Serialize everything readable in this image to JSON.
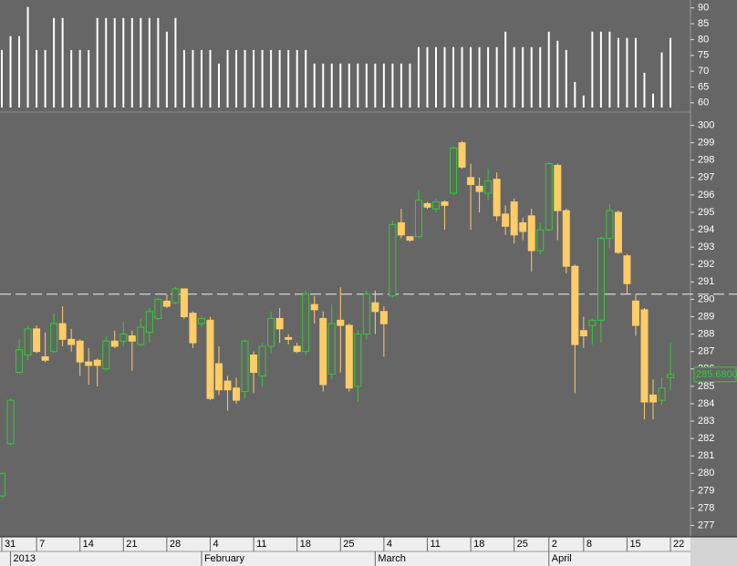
{
  "chart_data": [
    {
      "type": "bar",
      "series": [
        {
          "color": "#ffffff",
          "values": [
            76.7,
            81.1,
            81.1,
            90.3,
            76.7,
            76.7,
            86.8,
            86.8,
            76.7,
            76.7,
            76.7,
            86.8,
            86.8,
            86.8,
            86.8,
            86.8,
            86.8,
            86.8,
            86.8,
            82.5,
            86.8,
            76.7,
            76.7,
            76.7,
            76.7,
            72.4,
            76.7,
            76.7,
            76.7,
            76.7,
            76.7,
            76.7,
            76.7,
            76.7,
            76.7,
            76.7,
            72.4,
            72.4,
            72.4,
            72.4,
            72.4,
            72.4,
            72.4,
            72.4,
            72.4,
            72.4,
            72.4,
            72.4,
            77.6,
            77.6,
            77.6,
            77.6,
            77.6,
            77.6,
            77.6,
            77.6,
            77.6,
            77.6,
            82.5,
            77.6,
            77.6,
            77.6,
            77.6,
            82.5,
            79.6,
            76.7,
            66.6,
            62.3,
            82.5,
            82.5,
            82.5,
            80.5,
            80.5,
            80.5,
            69.5,
            62.9,
            75.9,
            80.5
          ]
        }
      ],
      "ylim": [
        58.5,
        92.5
      ],
      "yticks": [
        60,
        65,
        70,
        75,
        80,
        85,
        90
      ]
    },
    {
      "type": "candlestick",
      "up_color": "#33cc33",
      "down_color": "#ffcc66",
      "categories": [
        "31",
        null,
        null,
        null,
        "7",
        null,
        null,
        null,
        null,
        "14",
        null,
        null,
        null,
        null,
        "21",
        null,
        null,
        null,
        null,
        "28",
        null,
        null,
        null,
        null,
        "4",
        null,
        null,
        null,
        null,
        "11",
        null,
        null,
        null,
        null,
        "18",
        null,
        null,
        null,
        null,
        "25",
        null,
        null,
        null,
        null,
        "4",
        null,
        null,
        null,
        null,
        "11",
        null,
        null,
        null,
        null,
        "18",
        null,
        null,
        null,
        null,
        "25",
        null,
        null,
        null,
        "2",
        null,
        null,
        null,
        "8",
        null,
        null,
        null,
        null,
        "15",
        null,
        null,
        null,
        null,
        "22"
      ],
      "periods": [
        null,
        "2013",
        null,
        null,
        null,
        null,
        null,
        null,
        null,
        null,
        null,
        null,
        null,
        null,
        null,
        null,
        null,
        null,
        null,
        null,
        null,
        null,
        null,
        "February",
        null,
        null,
        null,
        null,
        null,
        null,
        null,
        null,
        null,
        null,
        null,
        null,
        null,
        null,
        null,
        null,
        null,
        null,
        null,
        "March",
        null,
        null,
        null,
        null,
        null,
        null,
        null,
        null,
        null,
        null,
        null,
        null,
        null,
        null,
        null,
        null,
        null,
        null,
        null,
        "April",
        null,
        null,
        null,
        null,
        null,
        null,
        null,
        null,
        null,
        null,
        null,
        null,
        null,
        null
      ],
      "open": [
        278.7,
        281.7,
        285.8,
        286.8,
        288.3,
        286.7,
        287.0,
        288.6,
        287.7,
        287.6,
        286.4,
        286.5,
        286.0,
        287.6,
        287.6,
        287.9,
        287.4,
        288.1,
        288.9,
        289.9,
        289.8,
        290.6,
        289.2,
        288.6,
        288.8,
        286.3,
        285.3,
        284.9,
        284.7,
        286.8,
        285.6,
        287.3,
        288.9,
        287.8,
        287.3,
        287.0,
        289.7,
        288.9,
        285.7,
        288.8,
        288.5,
        285.0,
        288.0,
        289.8,
        289.3,
        290.2,
        294.4,
        293.6,
        293.6,
        295.5,
        295.2,
        295.6,
        296.1,
        299.0,
        297.0,
        296.5,
        296.1,
        296.9,
        294.9,
        295.6,
        294.4,
        294.8,
        292.8,
        294.0,
        297.7,
        295.1,
        291.9,
        288.2,
        288.5,
        288.8,
        293.5,
        295.0,
        292.5,
        289.9,
        289.4,
        284.5,
        284.2,
        285.5
      ],
      "high": [
        280.0,
        284.3,
        287.7,
        288.5,
        288.5,
        288.1,
        289.2,
        289.6,
        288.3,
        287.7,
        287.2,
        286.6,
        287.9,
        288.2,
        288.7,
        288.2,
        288.9,
        289.5,
        290.1,
        290.3,
        290.7,
        290.6,
        289.3,
        289.0,
        289.0,
        287.3,
        285.6,
        285.5,
        287.7,
        287.0,
        287.5,
        289.3,
        289.5,
        288.0,
        287.5,
        290.5,
        290.2,
        289.3,
        289.7,
        290.7,
        288.6,
        288.2,
        290.5,
        290.5,
        289.6,
        294.5,
        295.2,
        293.6,
        296.3,
        295.6,
        295.8,
        295.7,
        298.8,
        299.1,
        297.8,
        297.0,
        297.5,
        297.3,
        295.4,
        295.8,
        294.7,
        295.2,
        294.4,
        297.9,
        297.8,
        295.2,
        292.0,
        289.0,
        288.9,
        293.6,
        295.5,
        295.1,
        292.6,
        290.3,
        289.5,
        285.4,
        285.5,
        287.5
      ],
      "low": [
        278.6,
        281.6,
        285.7,
        286.5,
        286.9,
        286.4,
        286.9,
        287.3,
        287.0,
        285.6,
        285.1,
        285.0,
        285.9,
        287.2,
        287.3,
        285.9,
        287.3,
        287.5,
        288.8,
        289.5,
        289.7,
        288.9,
        287.2,
        288.4,
        284.2,
        284.5,
        283.6,
        284.0,
        284.3,
        284.6,
        285.0,
        286.9,
        287.5,
        287.4,
        286.9,
        286.8,
        288.6,
        284.7,
        285.4,
        285.8,
        284.7,
        284.1,
        287.7,
        288.0,
        286.7,
        290.1,
        293.5,
        293.3,
        293.5,
        295.2,
        295.0,
        294.0,
        296.0,
        297.5,
        294.0,
        295.0,
        295.7,
        294.5,
        293.7,
        293.2,
        293.4,
        291.6,
        292.6,
        293.9,
        293.4,
        291.5,
        284.6,
        287.2,
        287.4,
        287.5,
        292.9,
        292.6,
        290.3,
        287.9,
        283.1,
        283.1,
        283.9,
        284.8
      ],
      "close": [
        280.0,
        284.2,
        287.1,
        288.3,
        287.0,
        286.5,
        288.6,
        287.7,
        287.4,
        286.4,
        286.2,
        286.2,
        287.6,
        287.3,
        288.0,
        287.6,
        288.4,
        289.3,
        290.0,
        289.6,
        290.6,
        289.0,
        287.5,
        288.9,
        284.3,
        284.8,
        284.8,
        284.2,
        287.6,
        285.8,
        287.3,
        288.9,
        288.3,
        287.7,
        287.0,
        290.3,
        289.4,
        285.1,
        288.6,
        288.5,
        284.9,
        288.0,
        290.3,
        289.3,
        288.6,
        294.3,
        293.7,
        293.4,
        295.7,
        295.3,
        295.6,
        295.4,
        298.7,
        297.6,
        296.6,
        296.2,
        296.8,
        294.8,
        294.2,
        293.7,
        293.9,
        292.8,
        294.0,
        297.8,
        295.1,
        291.9,
        287.4,
        287.9,
        288.8,
        293.5,
        295.1,
        292.7,
        290.9,
        288.5,
        284.1,
        284.1,
        284.9,
        285.68
      ],
      "ylim": [
        276.4,
        300.5
      ],
      "yticks": [
        277,
        278,
        279,
        280,
        281,
        282,
        283,
        284,
        285,
        286,
        287,
        288,
        289,
        290,
        291,
        292,
        293,
        294,
        295,
        296,
        297,
        298,
        299,
        300
      ],
      "reference_line": 290.3,
      "last_price": 285.68,
      "last_price_label": "285.6800"
    }
  ]
}
